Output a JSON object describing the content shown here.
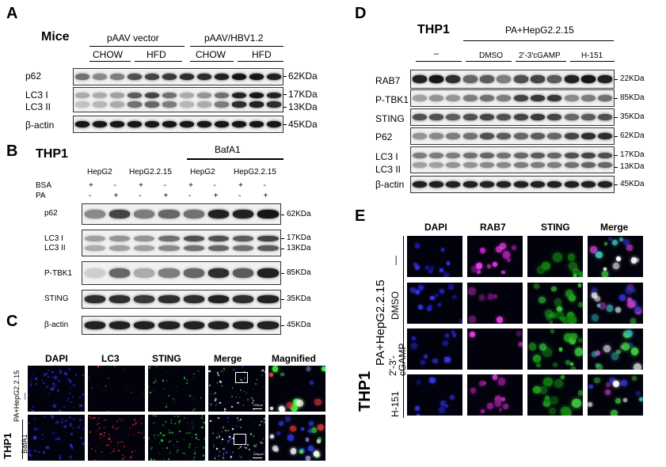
{
  "panels": {
    "A": "A",
    "B": "B",
    "C": "C",
    "D": "D",
    "E": "E"
  },
  "A": {
    "title": "Mice",
    "group_left": "pAAV vector",
    "group_right": "pAAV/HBV1.2",
    "conditions": [
      "CHOW",
      "HFD",
      "CHOW",
      "HFD"
    ],
    "row_labels": [
      "p62",
      "LC3 I",
      "LC3 II",
      "β-actin"
    ],
    "sizes": [
      "62KDa",
      "17KDa",
      "13KDa",
      "45KDa"
    ],
    "band_intensity": {
      "p62": [
        0.55,
        0.45,
        0.5,
        0.7,
        0.75,
        0.8,
        0.85,
        0.85,
        0.9,
        0.95,
        0.95,
        0.9
      ],
      "lc3i": [
        0.3,
        0.3,
        0.35,
        0.65,
        0.75,
        0.55,
        0.3,
        0.4,
        0.55,
        0.9,
        0.95,
        0.9
      ],
      "lc3ii": [
        0.2,
        0.25,
        0.3,
        0.55,
        0.6,
        0.5,
        0.25,
        0.3,
        0.5,
        0.85,
        0.9,
        0.85
      ],
      "actin": [
        0.95,
        0.95,
        0.95,
        0.95,
        0.95,
        0.95,
        0.95,
        0.95,
        0.95,
        0.95,
        0.95,
        0.95
      ]
    }
  },
  "B": {
    "title": "THP1",
    "bafa1": "BafA1",
    "cells": [
      "HepG2",
      "HepG2.2.15",
      "HepG2",
      "HepG2.2.15"
    ],
    "row_bsa_label": "BSA",
    "row_pa_label": "PA",
    "bsa": [
      "+",
      "-",
      "+",
      "-",
      "+",
      "-",
      "+",
      "-"
    ],
    "pa": [
      "-",
      "+",
      "-",
      "+",
      "-",
      "+",
      "-",
      "+"
    ],
    "row_labels": [
      "p62",
      "LC3 I",
      "LC3 II",
      "P-TBK1",
      "STING",
      "β-actin"
    ],
    "sizes": [
      "62KDa",
      "17KDa",
      "13KDa",
      "85KDa",
      "35KDa",
      "45KDa"
    ],
    "band_intensity": {
      "p62": [
        0.45,
        0.75,
        0.5,
        0.6,
        0.55,
        0.9,
        0.9,
        0.95
      ],
      "lc3i": [
        0.35,
        0.4,
        0.4,
        0.55,
        0.7,
        0.7,
        0.65,
        0.75
      ],
      "lc3ii": [
        0.3,
        0.35,
        0.35,
        0.45,
        0.55,
        0.6,
        0.55,
        0.65
      ],
      "ptbk1": [
        0.15,
        0.6,
        0.3,
        0.5,
        0.6,
        0.85,
        0.65,
        0.9
      ],
      "sting": [
        0.85,
        0.85,
        0.8,
        0.85,
        0.85,
        0.9,
        0.85,
        0.9
      ],
      "actin": [
        0.9,
        0.9,
        0.9,
        0.9,
        0.9,
        0.9,
        0.9,
        0.9
      ]
    }
  },
  "C": {
    "cols": [
      "DAPI",
      "LC3",
      "STING",
      "Merge",
      "Magnified"
    ],
    "col_colors": [
      "#2b2bd8",
      "#e02020",
      "#22d322",
      "#000000",
      "#000000"
    ],
    "row_group": "PA+HepG2.2.15",
    "row_labels": [
      "—",
      "BafA1"
    ],
    "cell_line": "THP1",
    "scale_bar": "100μm"
  },
  "D": {
    "title": "THP1",
    "group": "PA+HepG2.2.15",
    "conditions": [
      "–",
      "DMSO",
      "2'-3'cGAMP",
      "H-151"
    ],
    "row_labels": [
      "RAB7",
      "P-TBK1",
      "STING",
      "P62",
      "LC3 I",
      "LC3 II",
      "β-actin"
    ],
    "sizes": [
      "22KDa",
      "85KDa",
      "35KDa",
      "62KDa",
      "17KDa",
      "13KDa",
      "45KDa"
    ],
    "band_intensity": {
      "rab7": [
        0.9,
        0.95,
        0.85,
        0.6,
        0.65,
        0.5,
        0.7,
        0.75,
        0.65,
        0.9,
        0.95,
        0.9
      ],
      "ptbk1": [
        0.35,
        0.4,
        0.4,
        0.5,
        0.55,
        0.5,
        0.75,
        0.8,
        0.8,
        0.45,
        0.5,
        0.55
      ],
      "sting": [
        0.7,
        0.7,
        0.65,
        0.7,
        0.75,
        0.7,
        0.75,
        0.8,
        0.75,
        0.6,
        0.65,
        0.7
      ],
      "p62": [
        0.4,
        0.45,
        0.5,
        0.55,
        0.7,
        0.65,
        0.6,
        0.65,
        0.6,
        0.75,
        0.85,
        0.85
      ],
      "lc3i": [
        0.5,
        0.5,
        0.5,
        0.55,
        0.6,
        0.55,
        0.6,
        0.65,
        0.6,
        0.7,
        0.75,
        0.7
      ],
      "lc3ii": [
        0.35,
        0.35,
        0.4,
        0.4,
        0.45,
        0.45,
        0.5,
        0.5,
        0.5,
        0.55,
        0.6,
        0.6
      ],
      "actin": [
        0.9,
        0.9,
        0.9,
        0.9,
        0.9,
        0.9,
        0.9,
        0.9,
        0.9,
        0.9,
        0.9,
        0.9
      ]
    }
  },
  "E": {
    "cols": [
      "DAPI",
      "RAB7",
      "STING",
      "Merge"
    ],
    "col_colors": [
      "#2a2ae0",
      "#e020e0",
      "#20c820",
      "#000000"
    ],
    "cell_line": "THP1",
    "row_group": "PA+HepG2.2.15",
    "row_labels": [
      "—",
      "DMSO",
      "2'-3'-\ncGAMP",
      "H-151"
    ]
  }
}
